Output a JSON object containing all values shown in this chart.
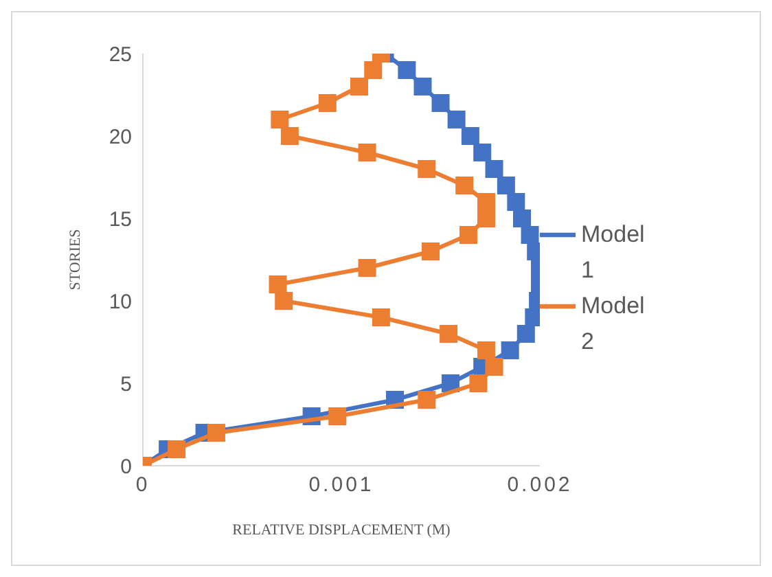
{
  "chart_data": {
    "type": "line",
    "xlabel": "RELATIVE DISPLACEMENT (M)",
    "ylabel": "STORIES",
    "xlim": [
      0,
      0.002
    ],
    "xticks": [
      {
        "value": 0,
        "label": "0"
      },
      {
        "value": 0.001,
        "label": "0.001"
      },
      {
        "value": 0.002,
        "label": "0.002"
      }
    ],
    "ylim": [
      0,
      25
    ],
    "yticks": [
      0,
      5,
      10,
      15,
      20,
      25
    ],
    "grid": false,
    "legend": "right",
    "marker": "square",
    "series": [
      {
        "name": "Model 1",
        "color": "#4472c4",
        "x": [
          0,
          0.000125,
          0.00031,
          0.00085,
          0.00127,
          0.00155,
          0.00171,
          0.00185,
          0.00193,
          0.00197,
          0.00199,
          0.002,
          0.002,
          0.00198,
          0.00195,
          0.00191,
          0.00188,
          0.00183,
          0.00177,
          0.00171,
          0.00165,
          0.00158,
          0.0015,
          0.00141,
          0.00133,
          0.00122
        ],
        "values": [
          0,
          1,
          2,
          3,
          4,
          5,
          6,
          7,
          8,
          9,
          10,
          11,
          12,
          13,
          14,
          15,
          16,
          17,
          18,
          19,
          20,
          21,
          22,
          23,
          24,
          25
        ]
      },
      {
        "name": "Model 2",
        "color": "#ed7d31",
        "x": [
          0,
          0.00017,
          0.00037,
          0.00098,
          0.00143,
          0.00169,
          0.00177,
          0.00173,
          0.00154,
          0.0012,
          0.00071,
          0.00068,
          0.00113,
          0.00145,
          0.00164,
          0.00173,
          0.00173,
          0.00162,
          0.00143,
          0.00113,
          0.00074,
          0.00069,
          0.00093,
          0.00109,
          0.00116,
          0.0012
        ],
        "values": [
          0,
          1,
          2,
          3,
          4,
          5,
          6,
          7,
          8,
          9,
          10,
          11,
          12,
          13,
          14,
          15,
          16,
          17,
          18,
          19,
          20,
          21,
          22,
          23,
          24,
          25
        ]
      }
    ]
  }
}
